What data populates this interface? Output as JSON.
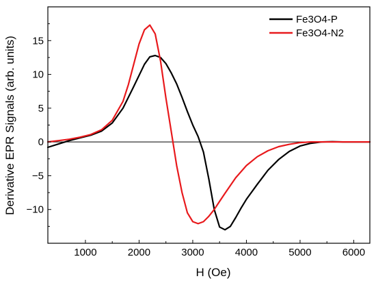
{
  "chart_data": {
    "type": "line",
    "xlabel": "H (Oe)",
    "ylabel": "Derivative EPR Signals (arb. units)",
    "xlim": [
      300,
      6300
    ],
    "ylim": [
      -15,
      20
    ],
    "xticks": [
      1000,
      2000,
      3000,
      4000,
      5000,
      6000
    ],
    "yticks": [
      -10,
      -5,
      0,
      5,
      10,
      15
    ],
    "zero_line": true,
    "grid": false,
    "legend_position": "top-right",
    "series": [
      {
        "name": "Fe3O4-P",
        "color": "#000000",
        "x": [
          300,
          500,
          700,
          900,
          1100,
          1300,
          1500,
          1700,
          1900,
          2100,
          2200,
          2300,
          2400,
          2500,
          2600,
          2700,
          2800,
          2900,
          3000,
          3100,
          3200,
          3300,
          3400,
          3500,
          3600,
          3700,
          3800,
          3900,
          4000,
          4200,
          4400,
          4600,
          4800,
          5000,
          5200,
          5400,
          5600,
          5800,
          6000,
          6300
        ],
        "y": [
          -0.8,
          -0.3,
          0.2,
          0.6,
          1.0,
          1.6,
          2.8,
          5.0,
          8.2,
          11.5,
          12.6,
          12.8,
          12.5,
          11.6,
          10.2,
          8.6,
          6.6,
          4.5,
          2.5,
          0.8,
          -1.5,
          -5.5,
          -10.0,
          -12.6,
          -13.0,
          -12.5,
          -11.2,
          -9.8,
          -8.5,
          -6.3,
          -4.2,
          -2.6,
          -1.4,
          -0.6,
          -0.2,
          0.0,
          0.05,
          0.0,
          0.0,
          0.0
        ]
      },
      {
        "name": "Fe3O4-N2",
        "color": "#e8191c",
        "x": [
          300,
          500,
          700,
          900,
          1100,
          1300,
          1500,
          1700,
          1800,
          1900,
          2000,
          2100,
          2200,
          2300,
          2400,
          2500,
          2600,
          2700,
          2800,
          2900,
          3000,
          3100,
          3200,
          3300,
          3400,
          3500,
          3600,
          3800,
          4000,
          4200,
          4400,
          4600,
          4800,
          5000,
          5200,
          5400,
          5600,
          6000,
          6300
        ],
        "y": [
          0.0,
          0.2,
          0.4,
          0.7,
          1.1,
          1.8,
          3.2,
          6.0,
          8.5,
          11.5,
          14.5,
          16.6,
          17.3,
          16.0,
          12.0,
          6.5,
          1.5,
          -3.5,
          -7.5,
          -10.5,
          -11.8,
          -12.1,
          -11.8,
          -11.0,
          -10.0,
          -8.8,
          -7.6,
          -5.3,
          -3.5,
          -2.2,
          -1.3,
          -0.7,
          -0.35,
          -0.1,
          0.0,
          0.0,
          0.0,
          0.0,
          0.0
        ]
      }
    ]
  }
}
